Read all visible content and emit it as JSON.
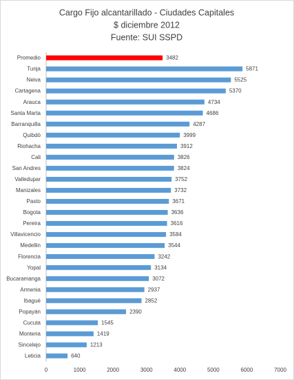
{
  "chart_data": {
    "type": "bar",
    "orientation": "horizontal",
    "title": [
      "Cargo Fijo alcantarillado - Ciudades Capitales",
      "$ diciembre 2012",
      "Fuente: SUI SSPD"
    ],
    "categories": [
      "Promedio",
      "Tunja",
      "Neiva",
      "Cartagena",
      "Arauca",
      "Santa Marta",
      "Barranquilla",
      "Quibdó",
      "Riohacha",
      "Cali",
      "San Andres",
      "Valledupar",
      "Manizales",
      "Pasto",
      "Bogota",
      "Pereira",
      "Villavicencio",
      "Medellin",
      "Florencia",
      "Yopal",
      "Bucaramanga",
      "Armenia",
      "Ibagué",
      "Popayán",
      "Cucuta",
      "Monteria",
      "Sincelejo",
      "Leticia"
    ],
    "values": [
      3482,
      5871,
      5525,
      5370,
      4734,
      4686,
      4287,
      3999,
      3912,
      3826,
      3824,
      3752,
      3732,
      3671,
      3636,
      3616,
      3584,
      3544,
      3242,
      3134,
      3072,
      2937,
      2852,
      2390,
      1545,
      1419,
      1213,
      640
    ],
    "colors": [
      "#ff0000",
      "#5b9bd5",
      "#5b9bd5",
      "#5b9bd5",
      "#5b9bd5",
      "#5b9bd5",
      "#5b9bd5",
      "#5b9bd5",
      "#5b9bd5",
      "#5b9bd5",
      "#5b9bd5",
      "#5b9bd5",
      "#5b9bd5",
      "#5b9bd5",
      "#5b9bd5",
      "#5b9bd5",
      "#5b9bd5",
      "#5b9bd5",
      "#5b9bd5",
      "#5b9bd5",
      "#5b9bd5",
      "#5b9bd5",
      "#5b9bd5",
      "#5b9bd5",
      "#5b9bd5",
      "#5b9bd5",
      "#5b9bd5",
      "#5b9bd5"
    ],
    "xlim": [
      0,
      7000
    ],
    "xticks": [
      0,
      1000,
      2000,
      3000,
      4000,
      5000,
      6000,
      7000
    ],
    "grid": false
  }
}
